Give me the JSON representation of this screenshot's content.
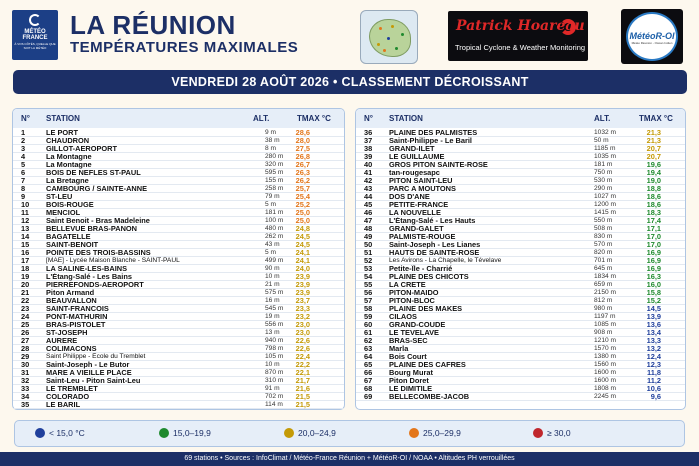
{
  "header": {
    "logo_line1": "MÉTÉO",
    "logo_line2": "FRANCE",
    "logo_line3": "À VOS CÔTÉS, QUELLE QUE SOIT LA MÉTÉO",
    "title": "LA RÉUNION",
    "subtitle": "TEMPÉRATURES MAXIMALES",
    "partner_name": "Patrick Hoareau",
    "partner_tagline": "Tropical Cyclone & Weather Monitoring",
    "moi_logo_text": "MétéoR-OI",
    "moi_logo_sub": "Météo Réunion - Océan Indien"
  },
  "date_banner": "VENDREDI 28 AOÛT 2026 • CLASSEMENT DÉCROISSANT",
  "columns": {
    "num": "N°",
    "station": "STATION",
    "alt": "ALT.",
    "tmax": "TMAX °C"
  },
  "colors": {
    "blue": "#1f3f9c",
    "green": "#1f8a2e",
    "yellow": "#c49a06",
    "orange": "#e3761a",
    "red": "#c0262c",
    "navy": "#1c2f66"
  },
  "stations_left": [
    {
      "n": "1",
      "name": "LE PORT",
      "alt": "9 m",
      "tmax": "28,6",
      "c": "orange"
    },
    {
      "n": "2",
      "name": "CHAUDRON",
      "alt": "38 m",
      "tmax": "28,0",
      "c": "orange"
    },
    {
      "n": "3",
      "name": "GILLOT-AEROPORT",
      "alt": "8 m",
      "tmax": "27,5",
      "c": "orange"
    },
    {
      "n": "4",
      "name": "La Montagne",
      "alt": "280 m",
      "tmax": "26,8",
      "c": "orange"
    },
    {
      "n": "5",
      "name": "La Montagne",
      "alt": "320 m",
      "tmax": "26,7",
      "c": "orange"
    },
    {
      "n": "6",
      "name": "BOIS DE NEFLES ST-PAUL",
      "alt": "595 m",
      "tmax": "26,3",
      "c": "orange"
    },
    {
      "n": "7",
      "name": "La Bretagne",
      "alt": "155 m",
      "tmax": "26,2",
      "c": "orange"
    },
    {
      "n": "8",
      "name": "CAMBOURG / SAINTE-ANNE",
      "alt": "258 m",
      "tmax": "25,7",
      "c": "orange"
    },
    {
      "n": "9",
      "name": "ST-LEU",
      "alt": "79 m",
      "tmax": "25,4",
      "c": "orange"
    },
    {
      "n": "10",
      "name": "BOIS-ROUGE",
      "alt": "5 m",
      "tmax": "25,2",
      "c": "orange"
    },
    {
      "n": "11",
      "name": "MENCIOL",
      "alt": "181 m",
      "tmax": "25,0",
      "c": "orange"
    },
    {
      "n": "12",
      "name": "Saint Benoit - Bras Madeleine",
      "alt": "100 m",
      "tmax": "25,0",
      "c": "orange"
    },
    {
      "n": "13",
      "name": "BELLEVUE BRAS-PANON",
      "alt": "480 m",
      "tmax": "24,8",
      "c": "yellow"
    },
    {
      "n": "14",
      "name": "BAGATELLE",
      "alt": "262 m",
      "tmax": "24,5",
      "c": "yellow"
    },
    {
      "n": "15",
      "name": "SAINT-BENOIT",
      "alt": "43 m",
      "tmax": "24,5",
      "c": "yellow"
    },
    {
      "n": "16",
      "name": "POINTE DES TROIS-BASSINS",
      "alt": "5 m",
      "tmax": "24,1",
      "c": "yellow"
    },
    {
      "n": "17",
      "name": "[MAE] - Lycée Maison Blanche - SAINT-PAUL",
      "alt": "499 m",
      "tmax": "24,1",
      "c": "yellow",
      "small": true
    },
    {
      "n": "18",
      "name": "LA SALINE-LES-BAINS",
      "alt": "90 m",
      "tmax": "24,0",
      "c": "yellow"
    },
    {
      "n": "19",
      "name": "L'Étang-Salé - Les Bains",
      "alt": "10 m",
      "tmax": "23,9",
      "c": "yellow"
    },
    {
      "n": "20",
      "name": "PIERREFONDS-AEROPORT",
      "alt": "21 m",
      "tmax": "23,9",
      "c": "yellow"
    },
    {
      "n": "21",
      "name": "Piton Armand",
      "alt": "575 m",
      "tmax": "23,9",
      "c": "yellow"
    },
    {
      "n": "22",
      "name": "BEAUVALLON",
      "alt": "16 m",
      "tmax": "23,7",
      "c": "yellow"
    },
    {
      "n": "23",
      "name": "SAINT-FRANCOIS",
      "alt": "545 m",
      "tmax": "23,3",
      "c": "yellow"
    },
    {
      "n": "24",
      "name": "PONT-MATHURIN",
      "alt": "19 m",
      "tmax": "23,2",
      "c": "yellow"
    },
    {
      "n": "25",
      "name": "BRAS-PISTOLET",
      "alt": "556 m",
      "tmax": "23,0",
      "c": "yellow"
    },
    {
      "n": "26",
      "name": "ST-JOSEPH",
      "alt": "13 m",
      "tmax": "23,0",
      "c": "yellow"
    },
    {
      "n": "27",
      "name": "AURERE",
      "alt": "940 m",
      "tmax": "22,6",
      "c": "yellow"
    },
    {
      "n": "28",
      "name": "COLIMACONS",
      "alt": "798 m",
      "tmax": "22,6",
      "c": "yellow"
    },
    {
      "n": "29",
      "name": "Saint Philippe - École du Tremblet",
      "alt": "105 m",
      "tmax": "22,4",
      "c": "yellow",
      "small": true
    },
    {
      "n": "30",
      "name": "Saint-Joseph - Le Butor",
      "alt": "10 m",
      "tmax": "22,2",
      "c": "yellow"
    },
    {
      "n": "31",
      "name": "MARE A VIEILLE PLACE",
      "alt": "870 m",
      "tmax": "22,1",
      "c": "yellow"
    },
    {
      "n": "32",
      "name": "Saint-Leu - Piton Saint-Leu",
      "alt": "310 m",
      "tmax": "21,7",
      "c": "yellow"
    },
    {
      "n": "33",
      "name": "LE TREMBLET",
      "alt": "91 m",
      "tmax": "21,6",
      "c": "yellow"
    },
    {
      "n": "34",
      "name": "COLORADO",
      "alt": "702 m",
      "tmax": "21,5",
      "c": "yellow"
    },
    {
      "n": "35",
      "name": "LE BARIL",
      "alt": "114 m",
      "tmax": "21,5",
      "c": "yellow"
    }
  ],
  "stations_right": [
    {
      "n": "36",
      "name": "PLAINE DES PALMISTES",
      "alt": "1032 m",
      "tmax": "21,3",
      "c": "yellow"
    },
    {
      "n": "37",
      "name": "Saint-Philippe - Le Baril",
      "alt": "50 m",
      "tmax": "21,3",
      "c": "yellow"
    },
    {
      "n": "38",
      "name": "GRAND-ILET",
      "alt": "1185 m",
      "tmax": "20,7",
      "c": "yellow"
    },
    {
      "n": "39",
      "name": "LE GUILLAUME",
      "alt": "1035 m",
      "tmax": "20,7",
      "c": "yellow"
    },
    {
      "n": "40",
      "name": "GROS PITON SAINTE-ROSE",
      "alt": "181 m",
      "tmax": "19,6",
      "c": "green"
    },
    {
      "n": "41",
      "name": "tan-rougesapc",
      "alt": "750 m",
      "tmax": "19,4",
      "c": "green"
    },
    {
      "n": "42",
      "name": "PITON SAINT-LEU",
      "alt": "530 m",
      "tmax": "19,0",
      "c": "green"
    },
    {
      "n": "43",
      "name": "PARC A MOUTONS",
      "alt": "290 m",
      "tmax": "18,8",
      "c": "green"
    },
    {
      "n": "44",
      "name": "DOS D'ANE",
      "alt": "1027 m",
      "tmax": "18,6",
      "c": "green"
    },
    {
      "n": "45",
      "name": "PETITE-FRANCE",
      "alt": "1200 m",
      "tmax": "18,6",
      "c": "green"
    },
    {
      "n": "46",
      "name": "LA NOUVELLE",
      "alt": "1415 m",
      "tmax": "18,3",
      "c": "green"
    },
    {
      "n": "47",
      "name": "L'Étang-Salé - Les Hauts",
      "alt": "550 m",
      "tmax": "17,4",
      "c": "green"
    },
    {
      "n": "48",
      "name": "GRAND-GALET",
      "alt": "508 m",
      "tmax": "17,1",
      "c": "green"
    },
    {
      "n": "49",
      "name": "PALMISTE-ROUGE",
      "alt": "830 m",
      "tmax": "17,0",
      "c": "green"
    },
    {
      "n": "50",
      "name": "Saint-Joseph - Les Lianes",
      "alt": "570 m",
      "tmax": "17,0",
      "c": "green"
    },
    {
      "n": "51",
      "name": "HAUTS DE SAINTE-ROSE",
      "alt": "820 m",
      "tmax": "16,9",
      "c": "green"
    },
    {
      "n": "52",
      "name": "Les Avirons - La Chapelle, le Tévelave",
      "alt": "701 m",
      "tmax": "16,9",
      "c": "green",
      "small": true
    },
    {
      "n": "53",
      "name": "Petite-Île - Charrié",
      "alt": "645 m",
      "tmax": "16,9",
      "c": "green"
    },
    {
      "n": "54",
      "name": "PLAINE DES CHICOTS",
      "alt": "1834 m",
      "tmax": "16,3",
      "c": "green"
    },
    {
      "n": "55",
      "name": "LA CRETE",
      "alt": "659 m",
      "tmax": "16,0",
      "c": "green"
    },
    {
      "n": "56",
      "name": "PITON-MAIDO",
      "alt": "2150 m",
      "tmax": "15,8",
      "c": "green"
    },
    {
      "n": "57",
      "name": "PITON-BLOC",
      "alt": "812 m",
      "tmax": "15,2",
      "c": "green"
    },
    {
      "n": "58",
      "name": "PLAINE DES MAKES",
      "alt": "980 m",
      "tmax": "14,5",
      "c": "blue"
    },
    {
      "n": "59",
      "name": "CILAOS",
      "alt": "1197 m",
      "tmax": "13,9",
      "c": "blue"
    },
    {
      "n": "60",
      "name": "GRAND-COUDE",
      "alt": "1085 m",
      "tmax": "13,6",
      "c": "blue"
    },
    {
      "n": "61",
      "name": "LE TEVELAVE",
      "alt": "908 m",
      "tmax": "13,4",
      "c": "blue"
    },
    {
      "n": "62",
      "name": "BRAS-SEC",
      "alt": "1210 m",
      "tmax": "13,3",
      "c": "blue"
    },
    {
      "n": "63",
      "name": "Marla",
      "alt": "1570 m",
      "tmax": "13,2",
      "c": "blue"
    },
    {
      "n": "64",
      "name": "Bois Court",
      "alt": "1380 m",
      "tmax": "12,4",
      "c": "blue"
    },
    {
      "n": "65",
      "name": "PLAINE DES CAFRES",
      "alt": "1560 m",
      "tmax": "12,3",
      "c": "blue"
    },
    {
      "n": "66",
      "name": "Bourg Murat",
      "alt": "1600 m",
      "tmax": "11,8",
      "c": "blue"
    },
    {
      "n": "67",
      "name": "Piton Doret",
      "alt": "1600 m",
      "tmax": "11,2",
      "c": "blue"
    },
    {
      "n": "68",
      "name": "LE DIMITILE",
      "alt": "1808 m",
      "tmax": "10,6",
      "c": "blue"
    },
    {
      "n": "69",
      "name": "BELLECOMBE-JACOB",
      "alt": "2245 m",
      "tmax": "9,6",
      "c": "blue"
    }
  ],
  "legend": [
    {
      "label": "< 15,0 °C",
      "c": "blue"
    },
    {
      "label": "15,0–19,9",
      "c": "green"
    },
    {
      "label": "20,0–24,9",
      "c": "yellow"
    },
    {
      "label": "25,0–29,9",
      "c": "orange"
    },
    {
      "label": "≥ 30,0",
      "c": "red"
    }
  ],
  "footer": "69 stations • Sources : InfoClimat / Météo-France Réunion + MétéoR-OI / NOAA • Altitudes PH verrouillées"
}
